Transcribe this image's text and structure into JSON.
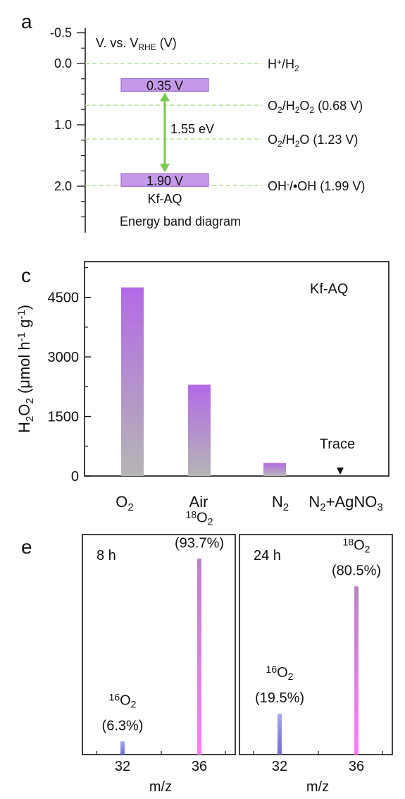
{
  "panels": {
    "a": {
      "letter": "a",
      "axis_title_main": "V. vs. V",
      "axis_title_sub": "RHE",
      "axis_title_tail": " (V)",
      "ticks": [
        {
          "v": -0.5,
          "label": "-0.5"
        },
        {
          "v": 0.0,
          "label": "0.0"
        },
        {
          "v": 1.0,
          "label": "1.0"
        },
        {
          "v": 2.0,
          "label": "2.0"
        }
      ],
      "refs": [
        {
          "v": 0.0,
          "parts": [
            [
              "H",
              "n"
            ],
            [
              "+",
              "sup"
            ],
            [
              "/H",
              "n"
            ],
            [
              "2",
              "sub"
            ]
          ]
        },
        {
          "v": 0.68,
          "parts": [
            [
              "O",
              "n"
            ],
            [
              "2",
              "sub"
            ],
            [
              "/H",
              "n"
            ],
            [
              "2",
              "sub"
            ],
            [
              "O",
              "n"
            ],
            [
              "2",
              "sub"
            ],
            [
              " (0.68 V)",
              "n"
            ]
          ]
        },
        {
          "v": 1.23,
          "parts": [
            [
              "O",
              "n"
            ],
            [
              "2",
              "sub"
            ],
            [
              "/H",
              "n"
            ],
            [
              "2",
              "sub"
            ],
            [
              "O (1.23 V)",
              "n"
            ]
          ]
        },
        {
          "v": 1.99,
          "parts": [
            [
              "OH",
              "n"
            ],
            [
              "-",
              "sup"
            ],
            [
              "/•OH (1.99 V)",
              "n"
            ]
          ]
        }
      ],
      "cb": {
        "v": 0.35,
        "label": "0.35 V"
      },
      "vb": {
        "v": 1.9,
        "label": "1.90 V"
      },
      "gap_label": "1.55 eV",
      "material": "Kf-AQ",
      "caption": "Energy band diagram",
      "color_bar": "#c49ae8"
    },
    "c": {
      "letter": "c",
      "ylabel_parts": [
        [
          "H",
          "n"
        ],
        [
          "2",
          "sub"
        ],
        [
          "O",
          "n"
        ],
        [
          "2",
          "sub"
        ],
        [
          " (μmol h",
          "n"
        ],
        [
          "-1",
          "sup"
        ],
        [
          " g",
          "n"
        ],
        [
          "-1",
          "sup"
        ],
        [
          ")",
          "n"
        ]
      ],
      "legend_text": "Kf-AQ",
      "trace_label": "Trace",
      "bar_top_color": "#b46ae6",
      "bar_bottom_color": "#b5b5b5",
      "yticks": [
        "0",
        "1500",
        "3000",
        "4500"
      ]
    },
    "e": {
      "letter": "e",
      "xlabel": "m/z",
      "xticks": [
        "32",
        "36"
      ],
      "sub_panels": [
        {
          "time": "8 h"
        },
        {
          "time": "24 h"
        }
      ],
      "color_16": "#8c8ce0",
      "color_18": "#e06ae0"
    }
  },
  "chart_data": [
    {
      "type": "energy_level",
      "ylabel": "V. vs. VRHE (V)",
      "ylim": [
        -0.5,
        2.5
      ],
      "reference_levels": [
        {
          "name": "H+/H2",
          "value": 0.0
        },
        {
          "name": "O2/H2O2",
          "value": 0.68
        },
        {
          "name": "O2/H2O",
          "value": 1.23
        },
        {
          "name": "OH-/•OH",
          "value": 1.99
        }
      ],
      "conduction_band": 0.35,
      "valence_band": 1.9,
      "band_gap_eV": 1.55,
      "material": "Kf-AQ",
      "caption": "Energy band diagram"
    },
    {
      "type": "bar",
      "categories": [
        "O2",
        "Air",
        "N2",
        "N2+AgNO3"
      ],
      "values": [
        4750,
        2300,
        330,
        0
      ],
      "annotations": [
        "",
        "",
        "",
        "Trace"
      ],
      "ylabel": "H2O2 (μmol h-1 g-1)",
      "ylim": [
        0,
        5400
      ],
      "yticks": [
        0,
        1500,
        3000,
        4500
      ],
      "legend": "Kf-AQ"
    },
    {
      "type": "bar",
      "title": "8 h",
      "xlabel": "m/z",
      "x": [
        32,
        36
      ],
      "values": [
        6.3,
        93.7
      ],
      "labels": [
        "16O2 (6.3%)",
        "18O2 (93.7%)"
      ]
    },
    {
      "type": "bar",
      "title": "24 h",
      "xlabel": "m/z",
      "x": [
        32,
        36
      ],
      "values": [
        19.5,
        80.5
      ],
      "labels": [
        "16O2 (19.5%)",
        "18O2 (80.5%)"
      ]
    }
  ]
}
